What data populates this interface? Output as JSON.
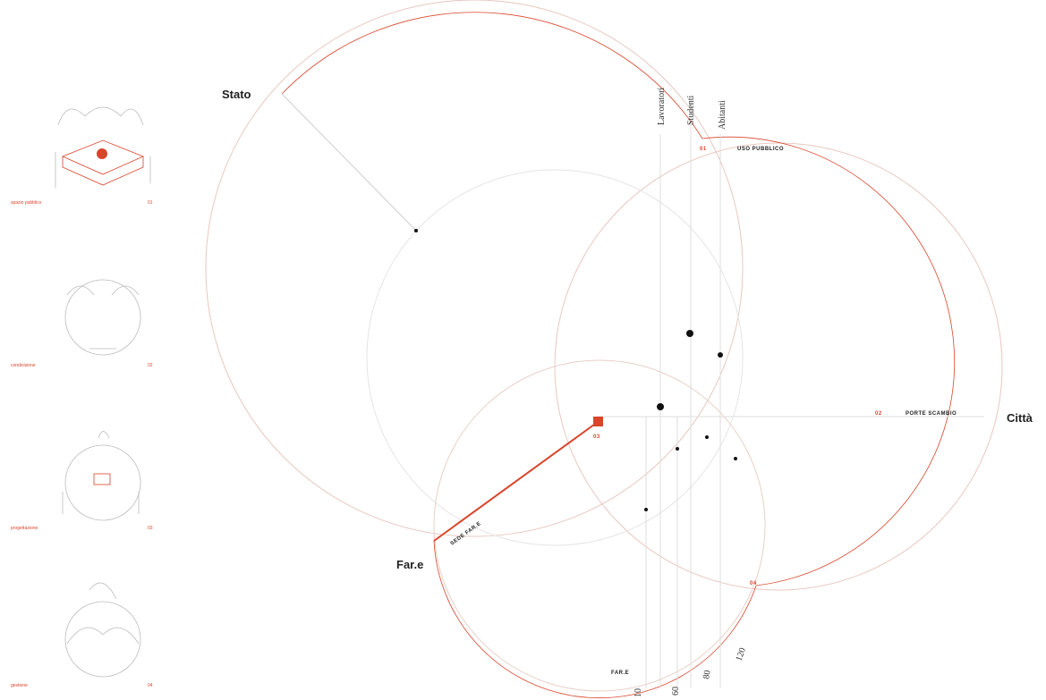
{
  "diagram": {
    "poles": [
      "Stato",
      "Città",
      "Far.e"
    ],
    "actors": [
      "Lavoratori",
      "Studenti",
      "Abitanti"
    ],
    "nodes": [
      {
        "code": "01",
        "label": "USO PUBBLICO"
      },
      {
        "code": "02",
        "label": "PORTE SCAMBIO"
      },
      {
        "code": "03",
        "label": "SEDE FAR.E"
      },
      {
        "code": "04",
        "label": "FAR.E"
      }
    ],
    "scale": [
      "10",
      "60",
      "80",
      "120"
    ]
  },
  "panels": [
    {
      "label": "spazio pubblico",
      "code": "01"
    },
    {
      "label": "condivisione",
      "code": "02"
    },
    {
      "label": "progettazione",
      "code": "03"
    },
    {
      "label": "gestione",
      "code": "04"
    }
  ]
}
